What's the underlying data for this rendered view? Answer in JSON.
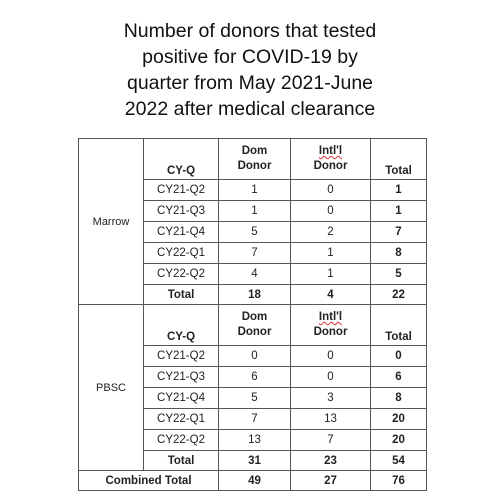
{
  "title": [
    "Number of donors that tested",
    "positive for COVID-19 by",
    "quarter from May 2021-June",
    "2022 after medical clearance"
  ],
  "chart_data": {
    "type": "table",
    "columns": [
      "CY-Q",
      "Dom Donor",
      "Intl'l Donor",
      "Total"
    ],
    "header": {
      "cyq": "CY-Q",
      "dom_1": "Dom",
      "dom_2": "Donor",
      "intl_1": "Intl'l",
      "intl_2": "Donor",
      "total": "Total"
    },
    "groups": [
      {
        "name": "Marrow",
        "rows": [
          {
            "cyq": "CY21-Q2",
            "dom": "1",
            "intl": "0",
            "total": "1"
          },
          {
            "cyq": "CY21-Q3",
            "dom": "1",
            "intl": "0",
            "total": "1"
          },
          {
            "cyq": "CY21-Q4",
            "dom": "5",
            "intl": "2",
            "total": "7"
          },
          {
            "cyq": "CY22-Q1",
            "dom": "7",
            "intl": "1",
            "total": "8"
          },
          {
            "cyq": "CY22-Q2",
            "dom": "4",
            "intl": "1",
            "total": "5"
          }
        ],
        "total": {
          "label": "Total",
          "dom": "18",
          "intl": "4",
          "total": "22"
        }
      },
      {
        "name": "PBSC",
        "rows": [
          {
            "cyq": "CY21-Q2",
            "dom": "0",
            "intl": "0",
            "total": "0"
          },
          {
            "cyq": "CY21-Q3",
            "dom": "6",
            "intl": "0",
            "total": "6"
          },
          {
            "cyq": "CY21-Q4",
            "dom": "5",
            "intl": "3",
            "total": "8"
          },
          {
            "cyq": "CY22-Q1",
            "dom": "7",
            "intl": "13",
            "total": "20"
          },
          {
            "cyq": "CY22-Q2",
            "dom": "13",
            "intl": "7",
            "total": "20"
          }
        ],
        "total": {
          "label": "Total",
          "dom": "31",
          "intl": "23",
          "total": "54"
        }
      }
    ],
    "combined": {
      "label": "Combined Total",
      "dom": "49",
      "intl": "27",
      "total": "76"
    }
  }
}
